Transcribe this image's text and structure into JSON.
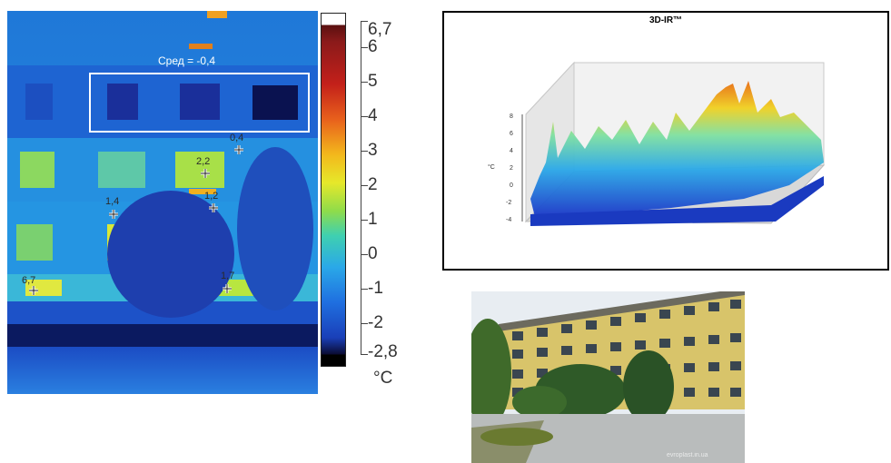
{
  "thermal": {
    "label_avg": "Сред = -0,4",
    "points": [
      {
        "label": "0,4"
      },
      {
        "label": "2,2"
      },
      {
        "label": "1,4"
      },
      {
        "label": "1,2"
      },
      {
        "label": "6,7"
      },
      {
        "label": "1,7"
      }
    ]
  },
  "colorbar": {
    "labels": [
      "6,7",
      "6",
      "5",
      "4",
      "3",
      "2",
      "1",
      "0",
      "-1",
      "-2",
      "-2,8"
    ],
    "unit": "°C"
  },
  "plot3d": {
    "title": "3D-IR™",
    "axis_unit": "°C",
    "ticks": [
      "8",
      "6",
      "4",
      "2",
      "0",
      "-2",
      "-4"
    ]
  },
  "photo": {
    "watermark": "evroplast.in.ua"
  }
}
